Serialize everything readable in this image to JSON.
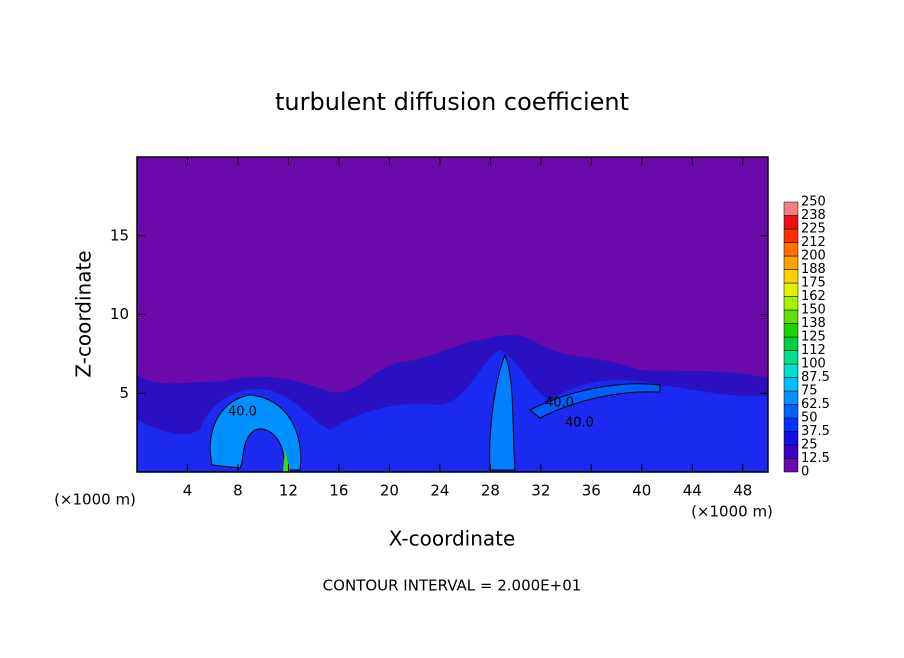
{
  "chart_data": {
    "type": "contour",
    "title": "turbulent diffusion coefficient",
    "xlabel": "X-coordinate",
    "ylabel": "Z-coordinate",
    "x_unit": "(×1000 m)",
    "footnote": "CONTOUR INTERVAL = 2.000E+01",
    "xlim": [
      0,
      50
    ],
    "xticks": [
      4,
      8,
      12,
      16,
      20,
      24,
      28,
      32,
      36,
      40,
      44,
      48
    ],
    "ylim": [
      0,
      20
    ],
    "yticks": [
      5,
      10,
      15
    ],
    "contour_labels": [
      "40.0",
      "40.0",
      "40.0"
    ],
    "colorbar": {
      "levels": [
        0,
        12.5,
        25,
        37.5,
        50,
        62.5,
        75,
        87.5,
        100,
        112,
        125,
        138,
        150,
        162,
        175,
        188,
        200,
        212,
        225,
        238,
        250
      ],
      "colors": [
        "#6a0aaa",
        "#3a00c8",
        "#1010e0",
        "#0030ff",
        "#0060ff",
        "#0090ff",
        "#00c0ff",
        "#00e0d0",
        "#00e090",
        "#00d040",
        "#20d000",
        "#60e000",
        "#a0f000",
        "#e0f000",
        "#ffd000",
        "#ffa000",
        "#ff7000",
        "#ff3000",
        "#f01010",
        "#f08080"
      ]
    }
  }
}
